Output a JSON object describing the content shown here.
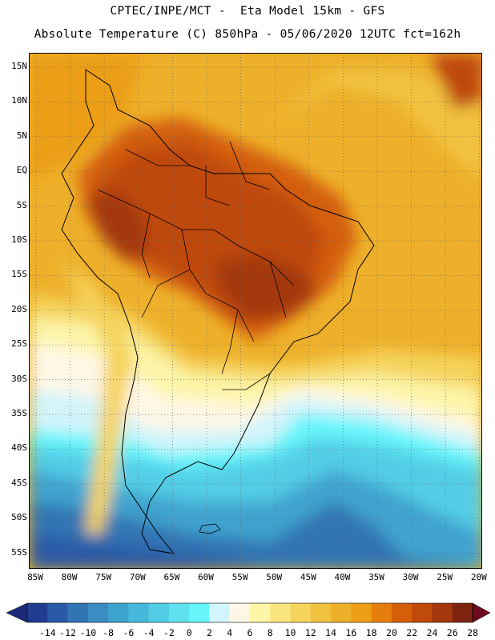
{
  "header": {
    "line1": "CPTEC/INPE/MCT -  Eta Model 15km - GFS",
    "line2": "Absolute Temperature (C) 850hPa - 05/06/2020 12UTC fct=162h"
  },
  "map": {
    "region": "South America",
    "lat_ticks": [
      "15N",
      "10N",
      "5N",
      "EQ",
      "5S",
      "10S",
      "15S",
      "20S",
      "25S",
      "30S",
      "35S",
      "40S",
      "45S",
      "50S",
      "55S"
    ],
    "lon_ticks": [
      "85W",
      "80W",
      "75W",
      "70W",
      "65W",
      "60W",
      "55W",
      "50W",
      "45W",
      "40W",
      "35W",
      "30W",
      "25W",
      "20W"
    ]
  },
  "colorbar": {
    "labels": [
      "-14",
      "-12",
      "-10",
      "-8",
      "-6",
      "-4",
      "-2",
      "0",
      "2",
      "4",
      "6",
      "8",
      "10",
      "12",
      "14",
      "16",
      "18",
      "20",
      "22",
      "24",
      "26",
      "28"
    ],
    "colors": [
      "#1f3d8f",
      "#2a5aa6",
      "#3274b4",
      "#3a8cc2",
      "#3fa3cf",
      "#46b8db",
      "#52cde6",
      "#5fe1f0",
      "#66f5fb",
      "#d2f4fb",
      "#fff7e6",
      "#fdf5a8",
      "#f9e57c",
      "#f5d35c",
      "#f1c23f",
      "#eeb02a",
      "#eb9e16",
      "#e67e0c",
      "#d45f08",
      "#bf4a0a",
      "#a4370c",
      "#7d2410"
    ],
    "low_arrow_color": "#1b2a7a",
    "high_arrow_color": "#6e0a20"
  }
}
